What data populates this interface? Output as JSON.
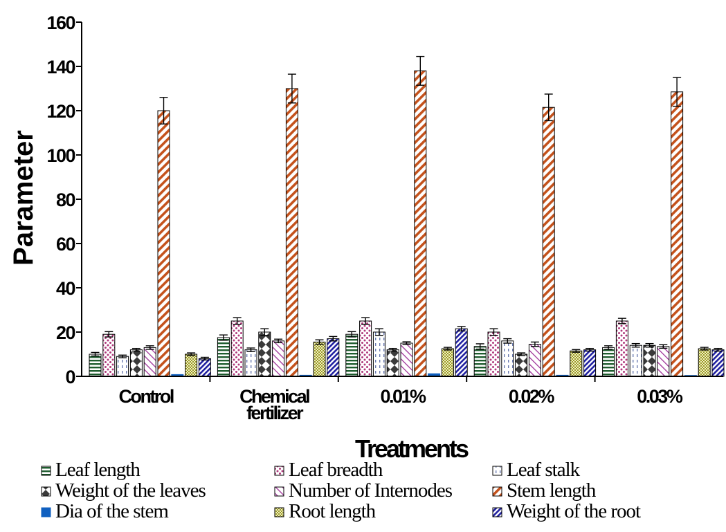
{
  "chart_data": {
    "type": "bar",
    "title": "",
    "xlabel": "Treatments",
    "ylabel": "Parameter",
    "ylim": [
      0,
      160
    ],
    "yticks": [
      0,
      20,
      40,
      60,
      80,
      100,
      120,
      140,
      160
    ],
    "grid": false,
    "legend_position": "bottom",
    "categories": [
      [
        "Control"
      ],
      [
        "Chemical",
        "fertilizer"
      ],
      [
        "0.01%"
      ],
      [
        "0.02%"
      ],
      [
        "0.03%"
      ]
    ],
    "series": [
      {
        "name": "Leaf length",
        "values": [
          10,
          17.5,
          19,
          13.5,
          13
        ],
        "errors": [
          0.8,
          1.2,
          1.2,
          1.2,
          0.8
        ],
        "color": "#1e5c2e",
        "pattern": "hlines"
      },
      {
        "name": "Leaf breadth",
        "values": [
          19,
          25,
          25,
          20,
          25
        ],
        "errors": [
          1.2,
          1.5,
          1.5,
          1.5,
          1.2
        ],
        "color": "#b03a7c",
        "pattern": "dots"
      },
      {
        "name": "Leaf stalk",
        "values": [
          9,
          12,
          20,
          16,
          14
        ],
        "errors": [
          0.6,
          0.8,
          1.5,
          1.0,
          0.8
        ],
        "color": "#6a7ab0",
        "pattern": "vdash"
      },
      {
        "name": "Weight of the leaves",
        "values": [
          12,
          20,
          12,
          10,
          14
        ],
        "errors": [
          0.6,
          1.5,
          0.6,
          0.6,
          0.8
        ],
        "color": "#3a3a3a",
        "pattern": "diamonds"
      },
      {
        "name": "Number of Internodes",
        "values": [
          13,
          16,
          15,
          14.5,
          13.5
        ],
        "errors": [
          0.8,
          0.8,
          0.6,
          1.0,
          0.8
        ],
        "color": "#a540a0",
        "pattern": "diagthin"
      },
      {
        "name": "Stem length",
        "values": [
          120,
          130,
          138,
          121.5,
          128.5
        ],
        "errors": [
          6,
          6.5,
          6.5,
          6,
          6.5
        ],
        "color": "#c4521c",
        "pattern": "diagthick"
      },
      {
        "name": "Dia of the stem",
        "values": [
          0.8,
          0.5,
          1.2,
          0.5,
          0.4
        ],
        "errors": [
          0,
          0,
          0,
          0,
          0
        ],
        "color": "#1060c0",
        "pattern": "solid"
      },
      {
        "name": "Root length",
        "values": [
          10,
          15.5,
          12.5,
          11.5,
          12.5
        ],
        "errors": [
          0.6,
          1.0,
          0.6,
          0.6,
          0.6
        ],
        "color": "#9a9a2a",
        "pattern": "checker"
      },
      {
        "name": "Weight of the root",
        "values": [
          8,
          17,
          21.5,
          12,
          12
        ],
        "errors": [
          0.6,
          1.0,
          1.0,
          0.6,
          0.6
        ],
        "color": "#2020a0",
        "pattern": "diagblue"
      }
    ]
  }
}
